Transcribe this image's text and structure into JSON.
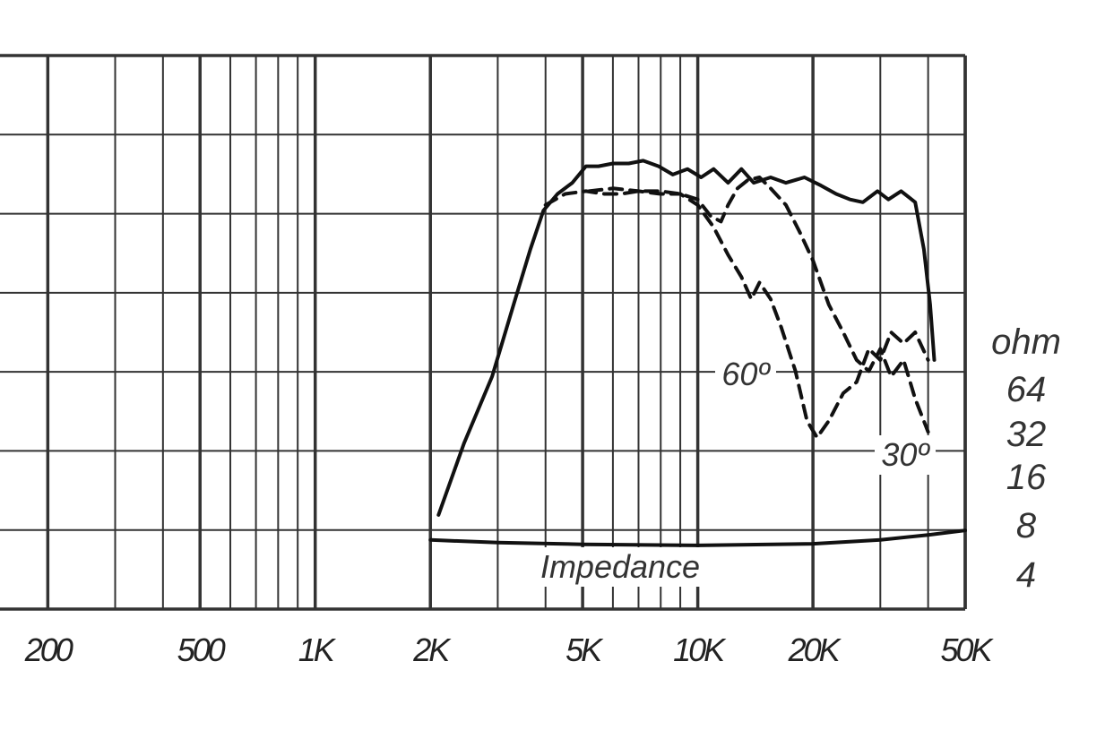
{
  "chart_data": {
    "type": "line",
    "title": "",
    "xlabel": "",
    "ylabel": "",
    "x_scale": "log",
    "xlim": [
      150,
      50000
    ],
    "x_ticks": [
      {
        "value": 200,
        "label": "200"
      },
      {
        "value": 500,
        "label": "500"
      },
      {
        "value": 1000,
        "label": "1K"
      },
      {
        "value": 2000,
        "label": "2K"
      },
      {
        "value": 5000,
        "label": "5K"
      },
      {
        "value": 10000,
        "label": "10K"
      },
      {
        "value": 20000,
        "label": "20K"
      },
      {
        "value": 50000,
        "label": "50K"
      }
    ],
    "y2_title": "ohm",
    "y2_scale": "log",
    "y2_ticks": [
      "64",
      "32",
      "16",
      "8",
      "4"
    ],
    "grid": true,
    "annotations": [
      {
        "text": "60º",
        "x": 12500,
        "series": "60°"
      },
      {
        "text": "30º",
        "x": 29500,
        "series": "30°"
      },
      {
        "text": "Impedance",
        "x": 7200,
        "series": "Impedance"
      }
    ],
    "series": [
      {
        "id": "on_axis",
        "style": "solid",
        "x": [
          2100,
          2450,
          2900,
          3300,
          3650,
          3950,
          4300,
          4700,
          5100,
          5500,
          6000,
          6600,
          7200,
          7900,
          8600,
          9400,
          10200,
          11000,
          12000,
          13000,
          14000,
          15500,
          17000,
          19000,
          21000,
          23000,
          25000,
          27000,
          29500,
          31500,
          34000,
          37000,
          39000,
          40500,
          41500
        ],
        "y_rel": [
          0.83,
          0.7,
          0.58,
          0.45,
          0.35,
          0.28,
          0.25,
          0.23,
          0.2,
          0.2,
          0.195,
          0.195,
          0.19,
          0.2,
          0.215,
          0.205,
          0.22,
          0.205,
          0.23,
          0.205,
          0.23,
          0.22,
          0.23,
          0.22,
          0.235,
          0.25,
          0.26,
          0.265,
          0.245,
          0.26,
          0.245,
          0.265,
          0.35,
          0.45,
          0.55
        ]
      },
      {
        "id": "deg_30",
        "name": "30°",
        "style": "dashed",
        "x": [
          4000,
          4500,
          5100,
          5700,
          6300,
          7000,
          8000,
          9000,
          10000,
          10800,
          11500,
          12000,
          12700,
          13500,
          14500,
          15500,
          17000,
          18500,
          20000,
          22000,
          24000,
          26000,
          28000,
          30000,
          32000,
          34500,
          37000,
          40000
        ],
        "y_rel": [
          0.27,
          0.25,
          0.245,
          0.25,
          0.25,
          0.245,
          0.245,
          0.25,
          0.26,
          0.29,
          0.3,
          0.27,
          0.24,
          0.225,
          0.22,
          0.24,
          0.27,
          0.32,
          0.37,
          0.45,
          0.5,
          0.55,
          0.57,
          0.53,
          0.58,
          0.55,
          0.62,
          0.68
        ]
      },
      {
        "id": "deg_60",
        "name": "60°",
        "style": "dashed",
        "x": [
          5200,
          6000,
          7000,
          8000,
          9000,
          10000,
          11000,
          12000,
          13000,
          13800,
          14500,
          15500,
          16500,
          18000,
          19300,
          20500,
          22000,
          24000,
          26000,
          28000,
          30000,
          32000,
          34500,
          37000,
          40000
        ],
        "y_rel": [
          0.245,
          0.24,
          0.245,
          0.25,
          0.25,
          0.27,
          0.31,
          0.36,
          0.4,
          0.44,
          0.41,
          0.44,
          0.49,
          0.57,
          0.66,
          0.69,
          0.66,
          0.61,
          0.59,
          0.53,
          0.55,
          0.5,
          0.52,
          0.5,
          0.55
        ]
      },
      {
        "id": "impedance",
        "name": "Impedance",
        "style": "solid",
        "x": [
          2000,
          3000,
          5000,
          10000,
          20000,
          30000,
          40000,
          50000
        ],
        "y_rel": [
          0.875,
          0.88,
          0.883,
          0.885,
          0.882,
          0.875,
          0.866,
          0.858
        ]
      }
    ]
  }
}
